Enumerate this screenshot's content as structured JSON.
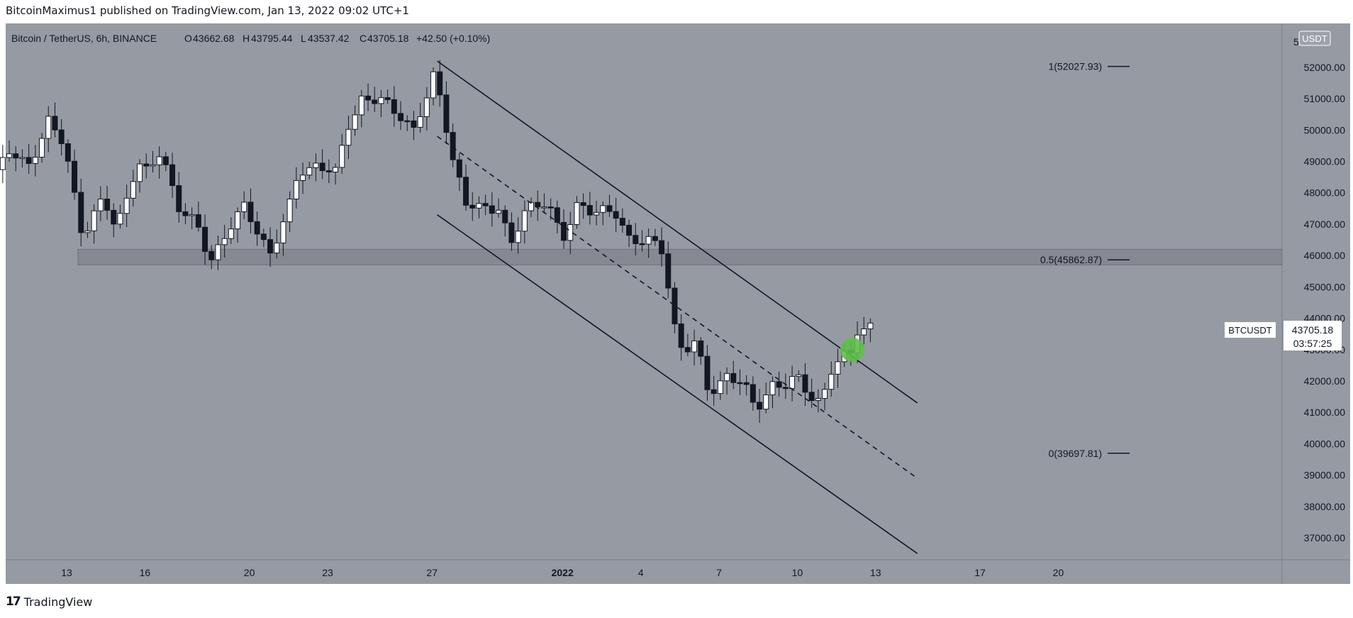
{
  "header": {
    "published_by": "BitcoinMaximus1 published on TradingView.com, Jan 13, 2022 09:02 UTC+1"
  },
  "legend": {
    "symbol": "Bitcoin / TetherUS, 6h, BINANCE",
    "open_label": "O",
    "open": "43662.68",
    "high_label": "H",
    "high": "43795.44",
    "low_label": "L",
    "low": "43537.42",
    "close_label": "C",
    "close": "43705.18",
    "change": "+42.50 (+0.10%)"
  },
  "price_scale": {
    "currency": "USDT",
    "top_partial_label": "5"
  },
  "price_tag": {
    "symbol": "BTCUSDT",
    "price": "43705.18",
    "countdown": "03:57:25"
  },
  "footer": {
    "brand": "TradingView",
    "brand_mark": "17"
  },
  "colors": {
    "background": "#969aa3",
    "candle_up": "#ffffff",
    "candle_down": "#131722",
    "channel": "#131722",
    "zone": "#80838c",
    "highlight": "#5fbf4a"
  },
  "chart_data": {
    "type": "candlestick",
    "timeframe": "6h",
    "ylim": [
      36300,
      53400
    ],
    "y_ticks": [
      37000,
      38000,
      39000,
      40000,
      41000,
      42000,
      43000,
      44000,
      45000,
      46000,
      47000,
      48000,
      49000,
      50000,
      51000,
      52000
    ],
    "x_ticks": [
      {
        "label": "13",
        "day": 13
      },
      {
        "label": "16",
        "day": 16
      },
      {
        "label": "20",
        "day": 20
      },
      {
        "label": "23",
        "day": 23
      },
      {
        "label": "27",
        "day": 27
      },
      {
        "label": "2022",
        "day": 32
      },
      {
        "label": "4",
        "day": 35
      },
      {
        "label": "7",
        "day": 38
      },
      {
        "label": "10",
        "day": 41
      },
      {
        "label": "13",
        "day": 44
      },
      {
        "label": "17",
        "day": 48
      },
      {
        "label": "20",
        "day": 51
      }
    ],
    "fib_levels": [
      {
        "label": "1(52027.93)",
        "value": 52027.93
      },
      {
        "label": "0.5(45862.87)",
        "value": 45862.87
      },
      {
        "label": "0(39697.81)",
        "value": 39697.81
      }
    ],
    "support_zone": {
      "from": 45700,
      "to": 46200
    },
    "highlight_circle": {
      "day": 43.1,
      "price": 43000
    },
    "channel": {
      "upper": [
        {
          "day": 27.2,
          "price": 52200
        },
        {
          "day": 45.6,
          "price": 41300
        }
      ],
      "middle": [
        {
          "day": 27.2,
          "price": 49800
        },
        {
          "day": 45.6,
          "price": 38900
        }
      ],
      "lower": [
        {
          "day": 27.2,
          "price": 47300
        },
        {
          "day": 45.6,
          "price": 36500
        }
      ]
    },
    "anchor_points": [
      [
        9.3,
        47500
      ],
      [
        10.0,
        48400
      ],
      [
        10.8,
        49300
      ],
      [
        11.5,
        48800
      ],
      [
        12.3,
        50300
      ],
      [
        12.9,
        49500
      ],
      [
        13.6,
        46700
      ],
      [
        14.4,
        47800
      ],
      [
        14.9,
        46800
      ],
      [
        15.7,
        49000
      ],
      [
        16.1,
        48600
      ],
      [
        16.6,
        49300
      ],
      [
        17.3,
        47600
      ],
      [
        18.0,
        46900
      ],
      [
        18.5,
        45800
      ],
      [
        19.2,
        46900
      ],
      [
        19.8,
        47500
      ],
      [
        20.3,
        46800
      ],
      [
        20.8,
        46100
      ],
      [
        21.5,
        47400
      ],
      [
        21.9,
        48700
      ],
      [
        22.6,
        48900
      ],
      [
        23.3,
        48600
      ],
      [
        23.8,
        50200
      ],
      [
        24.3,
        51000
      ],
      [
        25.1,
        50900
      ],
      [
        25.8,
        50500
      ],
      [
        26.3,
        50000
      ],
      [
        26.8,
        51000
      ],
      [
        27.1,
        51800
      ],
      [
        27.4,
        50800
      ],
      [
        27.8,
        49100
      ],
      [
        28.3,
        47600
      ],
      [
        29.0,
        47500
      ],
      [
        29.6,
        47600
      ],
      [
        30.0,
        46200
      ],
      [
        30.6,
        47500
      ],
      [
        31.4,
        47800
      ],
      [
        32.0,
        46400
      ],
      [
        32.6,
        47700
      ],
      [
        33.3,
        47400
      ],
      [
        34.1,
        47300
      ],
      [
        34.5,
        46600
      ],
      [
        35.4,
        46400
      ],
      [
        35.9,
        46100
      ],
      [
        36.2,
        44000
      ],
      [
        36.6,
        43000
      ],
      [
        37.1,
        43200
      ],
      [
        37.6,
        41600
      ],
      [
        38.3,
        42200
      ],
      [
        38.9,
        41900
      ],
      [
        39.4,
        41100
      ],
      [
        40.0,
        41900
      ],
      [
        40.5,
        41800
      ],
      [
        41.0,
        42100
      ],
      [
        41.6,
        41500
      ],
      [
        41.9,
        41300
      ],
      [
        42.3,
        42300
      ],
      [
        42.8,
        42800
      ],
      [
        43.1,
        43000
      ],
      [
        43.3,
        43700
      ],
      [
        43.6,
        43650
      ],
      [
        43.8,
        43705
      ]
    ]
  }
}
